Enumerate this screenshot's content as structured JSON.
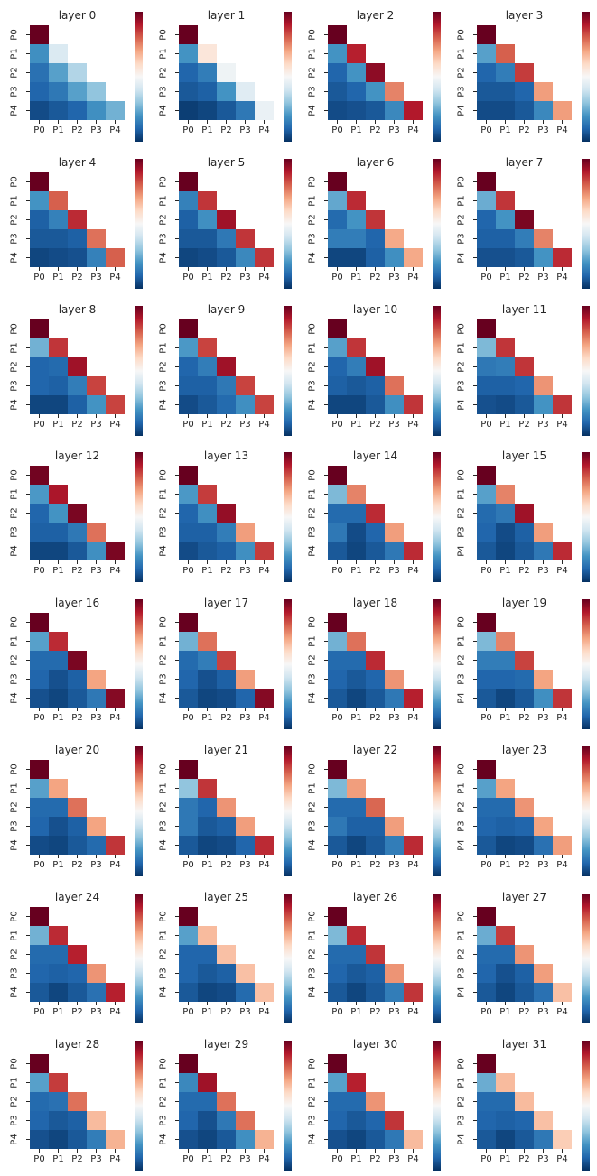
{
  "figure_name": "layerwise-similarity-heatmaps",
  "chart_data": {
    "type": "heatmap",
    "layout": {
      "grid_rows": 8,
      "grid_cols": 4,
      "n_panels": 32
    },
    "x_ticklabels": [
      "P0",
      "P1",
      "P2",
      "P3",
      "P4"
    ],
    "y_ticklabels": [
      "P0",
      "P1",
      "P2",
      "P3",
      "P4"
    ],
    "triangular": "lower",
    "vmin": -1,
    "vmax": 1,
    "colorbar": {
      "shown": true,
      "tick_labels": []
    },
    "colormap": {
      "name": "RdBu_r",
      "anchors_low_to_high": [
        "#053061",
        "#2166ac",
        "#4393c3",
        "#92c5de",
        "#d1e5f0",
        "#f7f7f7",
        "#fddbc7",
        "#f4a582",
        "#d6604d",
        "#b2182b",
        "#67001f"
      ]
    },
    "panels": [
      {
        "title": "layer 0",
        "matrix": [
          [
            1.0
          ],
          [
            -0.62,
            -0.15
          ],
          [
            -0.75,
            -0.55,
            -0.3
          ],
          [
            -0.8,
            -0.72,
            -0.55,
            -0.4
          ],
          [
            -0.9,
            -0.85,
            -0.8,
            -0.62,
            -0.48
          ]
        ]
      },
      {
        "title": "layer 1",
        "matrix": [
          [
            1.0
          ],
          [
            -0.6,
            0.12
          ],
          [
            -0.8,
            -0.7,
            -0.05
          ],
          [
            -0.85,
            -0.82,
            -0.6,
            -0.12
          ],
          [
            -0.95,
            -0.92,
            -0.85,
            -0.72,
            -0.07
          ]
        ]
      },
      {
        "title": "layer 2",
        "matrix": [
          [
            1.0
          ],
          [
            -0.6,
            0.78
          ],
          [
            -0.8,
            -0.6,
            0.9
          ],
          [
            -0.85,
            -0.8,
            -0.6,
            0.5
          ],
          [
            -0.9,
            -0.88,
            -0.85,
            -0.65,
            0.8
          ]
        ]
      },
      {
        "title": "layer 3",
        "matrix": [
          [
            1.0
          ],
          [
            -0.55,
            0.6
          ],
          [
            -0.8,
            -0.7,
            0.7
          ],
          [
            -0.85,
            -0.85,
            -0.8,
            0.42
          ],
          [
            -0.9,
            -0.9,
            -0.85,
            -0.65,
            0.42
          ]
        ]
      },
      {
        "title": "layer 4",
        "matrix": [
          [
            1.0
          ],
          [
            -0.6,
            0.6
          ],
          [
            -0.82,
            -0.68,
            0.75
          ],
          [
            -0.85,
            -0.85,
            -0.82,
            0.55
          ],
          [
            -0.92,
            -0.9,
            -0.88,
            -0.68,
            0.6
          ]
        ]
      },
      {
        "title": "layer 5",
        "matrix": [
          [
            1.0
          ],
          [
            -0.68,
            0.72
          ],
          [
            -0.82,
            -0.62,
            0.85
          ],
          [
            -0.85,
            -0.85,
            -0.72,
            0.72
          ],
          [
            -0.92,
            -0.9,
            -0.85,
            -0.65,
            0.72
          ]
        ]
      },
      {
        "title": "layer 6",
        "matrix": [
          [
            1.0
          ],
          [
            -0.52,
            0.75
          ],
          [
            -0.78,
            -0.6,
            0.72
          ],
          [
            -0.7,
            -0.7,
            -0.8,
            0.38
          ],
          [
            -0.92,
            -0.92,
            -0.82,
            -0.62,
            0.38
          ]
        ]
      },
      {
        "title": "layer 7",
        "matrix": [
          [
            1.0
          ],
          [
            -0.5,
            0.72
          ],
          [
            -0.8,
            -0.6,
            0.95
          ],
          [
            -0.82,
            -0.82,
            -0.7,
            0.5
          ],
          [
            -0.88,
            -0.88,
            -0.85,
            -0.6,
            0.75
          ]
        ]
      },
      {
        "title": "layer 8",
        "matrix": [
          [
            1.0
          ],
          [
            -0.48,
            0.72
          ],
          [
            -0.8,
            -0.78,
            0.85
          ],
          [
            -0.8,
            -0.82,
            -0.7,
            0.68
          ],
          [
            -0.92,
            -0.92,
            -0.82,
            -0.6,
            0.68
          ]
        ]
      },
      {
        "title": "layer 9",
        "matrix": [
          [
            1.0
          ],
          [
            -0.58,
            0.68
          ],
          [
            -0.8,
            -0.7,
            0.85
          ],
          [
            -0.82,
            -0.82,
            -0.72,
            0.68
          ],
          [
            -0.9,
            -0.85,
            -0.78,
            -0.62,
            0.68
          ]
        ]
      },
      {
        "title": "layer 10",
        "matrix": [
          [
            1.0
          ],
          [
            -0.55,
            0.72
          ],
          [
            -0.8,
            -0.7,
            0.85
          ],
          [
            -0.82,
            -0.85,
            -0.82,
            0.55
          ],
          [
            -0.92,
            -0.92,
            -0.85,
            -0.62,
            0.72
          ]
        ]
      },
      {
        "title": "layer 11",
        "matrix": [
          [
            1.0
          ],
          [
            -0.45,
            0.72
          ],
          [
            -0.72,
            -0.7,
            0.72
          ],
          [
            -0.82,
            -0.82,
            -0.8,
            0.45
          ],
          [
            -0.88,
            -0.9,
            -0.85,
            -0.6,
            0.72
          ]
        ]
      },
      {
        "title": "layer 12",
        "matrix": [
          [
            0.97
          ],
          [
            -0.58,
            0.82
          ],
          [
            -0.8,
            -0.6,
            0.95
          ],
          [
            -0.82,
            -0.82,
            -0.72,
            0.55
          ],
          [
            -0.92,
            -0.92,
            -0.85,
            -0.62,
            0.95
          ]
        ]
      },
      {
        "title": "layer 13",
        "matrix": [
          [
            1.0
          ],
          [
            -0.58,
            0.7
          ],
          [
            -0.8,
            -0.62,
            0.88
          ],
          [
            -0.82,
            -0.82,
            -0.7,
            0.42
          ],
          [
            -0.9,
            -0.85,
            -0.82,
            -0.62,
            0.7
          ]
        ]
      },
      {
        "title": "layer 14",
        "matrix": [
          [
            1.0
          ],
          [
            -0.45,
            0.5
          ],
          [
            -0.78,
            -0.78,
            0.75
          ],
          [
            -0.72,
            -0.9,
            -0.8,
            0.42
          ],
          [
            -0.85,
            -0.92,
            -0.85,
            -0.72,
            0.75
          ]
        ]
      },
      {
        "title": "layer 15",
        "matrix": [
          [
            1.0
          ],
          [
            -0.55,
            0.5
          ],
          [
            -0.78,
            -0.72,
            0.85
          ],
          [
            -0.8,
            -0.9,
            -0.82,
            0.42
          ],
          [
            -0.85,
            -0.92,
            -0.85,
            -0.72,
            0.75
          ]
        ]
      },
      {
        "title": "layer 16",
        "matrix": [
          [
            1.0
          ],
          [
            -0.55,
            0.75
          ],
          [
            -0.78,
            -0.78,
            0.95
          ],
          [
            -0.8,
            -0.88,
            -0.82,
            0.4
          ],
          [
            -0.88,
            -0.92,
            -0.85,
            -0.72,
            0.92
          ]
        ]
      },
      {
        "title": "layer 17",
        "matrix": [
          [
            1.0
          ],
          [
            -0.48,
            0.55
          ],
          [
            -0.78,
            -0.7,
            0.68
          ],
          [
            -0.8,
            -0.88,
            -0.82,
            0.42
          ],
          [
            -0.85,
            -0.92,
            -0.9,
            -0.8,
            0.92
          ]
        ]
      },
      {
        "title": "layer 18",
        "matrix": [
          [
            1.0
          ],
          [
            -0.48,
            0.55
          ],
          [
            -0.78,
            -0.78,
            0.75
          ],
          [
            -0.8,
            -0.85,
            -0.8,
            0.45
          ],
          [
            -0.85,
            -0.92,
            -0.85,
            -0.72,
            0.78
          ]
        ]
      },
      {
        "title": "layer 19",
        "matrix": [
          [
            1.0
          ],
          [
            -0.45,
            0.5
          ],
          [
            -0.7,
            -0.7,
            0.68
          ],
          [
            -0.8,
            -0.8,
            -0.78,
            0.4
          ],
          [
            -0.85,
            -0.92,
            -0.85,
            -0.62,
            0.72
          ]
        ]
      },
      {
        "title": "layer 20",
        "matrix": [
          [
            1.0
          ],
          [
            -0.55,
            0.4
          ],
          [
            -0.78,
            -0.78,
            0.55
          ],
          [
            -0.8,
            -0.88,
            -0.82,
            0.4
          ],
          [
            -0.9,
            -0.92,
            -0.85,
            -0.78,
            0.72
          ]
        ]
      },
      {
        "title": "layer 21",
        "matrix": [
          [
            1.0
          ],
          [
            -0.4,
            0.72
          ],
          [
            -0.72,
            -0.8,
            0.45
          ],
          [
            -0.72,
            -0.85,
            -0.82,
            0.42
          ],
          [
            -0.85,
            -0.92,
            -0.9,
            -0.8,
            0.75
          ]
        ]
      },
      {
        "title": "layer 22",
        "matrix": [
          [
            1.0
          ],
          [
            -0.45,
            0.42
          ],
          [
            -0.78,
            -0.78,
            0.58
          ],
          [
            -0.72,
            -0.82,
            -0.82,
            0.42
          ],
          [
            -0.85,
            -0.92,
            -0.85,
            -0.7,
            0.75
          ]
        ]
      },
      {
        "title": "layer 23",
        "matrix": [
          [
            1.0
          ],
          [
            -0.55,
            0.4
          ],
          [
            -0.78,
            -0.78,
            0.45
          ],
          [
            -0.8,
            -0.82,
            -0.8,
            0.4
          ],
          [
            -0.85,
            -0.92,
            -0.9,
            -0.75,
            0.42
          ]
        ]
      },
      {
        "title": "layer 24",
        "matrix": [
          [
            1.0
          ],
          [
            -0.48,
            0.75
          ],
          [
            -0.78,
            -0.78,
            0.78
          ],
          [
            -0.8,
            -0.82,
            -0.8,
            0.45
          ],
          [
            -0.85,
            -0.92,
            -0.85,
            -0.75,
            0.78
          ]
        ]
      },
      {
        "title": "layer 25",
        "matrix": [
          [
            1.0
          ],
          [
            -0.55,
            0.32
          ],
          [
            -0.8,
            -0.8,
            0.3
          ],
          [
            -0.8,
            -0.85,
            -0.82,
            0.3
          ],
          [
            -0.85,
            -0.92,
            -0.9,
            -0.78,
            0.3
          ]
        ]
      },
      {
        "title": "layer 26",
        "matrix": [
          [
            1.0
          ],
          [
            -0.45,
            0.75
          ],
          [
            -0.78,
            -0.78,
            0.72
          ],
          [
            -0.8,
            -0.85,
            -0.82,
            0.45
          ],
          [
            -0.85,
            -0.92,
            -0.85,
            -0.7,
            0.72
          ]
        ]
      },
      {
        "title": "layer 27",
        "matrix": [
          [
            1.0
          ],
          [
            -0.5,
            0.7
          ],
          [
            -0.78,
            -0.78,
            0.45
          ],
          [
            -0.8,
            -0.88,
            -0.82,
            0.42
          ],
          [
            -0.85,
            -0.92,
            -0.85,
            -0.75,
            0.3
          ]
        ]
      },
      {
        "title": "layer 28",
        "matrix": [
          [
            1.0
          ],
          [
            -0.55,
            0.7
          ],
          [
            -0.78,
            -0.75,
            0.55
          ],
          [
            -0.8,
            -0.85,
            -0.82,
            0.32
          ],
          [
            -0.88,
            -0.92,
            -0.85,
            -0.7,
            0.35
          ]
        ]
      },
      {
        "title": "layer 29",
        "matrix": [
          [
            1.0
          ],
          [
            -0.65,
            0.85
          ],
          [
            -0.78,
            -0.78,
            0.55
          ],
          [
            -0.8,
            -0.88,
            -0.72,
            0.55
          ],
          [
            -0.88,
            -0.92,
            -0.85,
            -0.62,
            0.35
          ]
        ]
      },
      {
        "title": "layer 30",
        "matrix": [
          [
            1.0
          ],
          [
            -0.55,
            0.78
          ],
          [
            -0.78,
            -0.78,
            0.45
          ],
          [
            -0.8,
            -0.85,
            -0.8,
            0.72
          ],
          [
            -0.88,
            -0.92,
            -0.85,
            -0.72,
            0.32
          ]
        ]
      },
      {
        "title": "layer 31",
        "matrix": [
          [
            1.0
          ],
          [
            -0.5,
            0.32
          ],
          [
            -0.78,
            -0.78,
            0.32
          ],
          [
            -0.8,
            -0.82,
            -0.8,
            0.3
          ],
          [
            -0.85,
            -0.92,
            -0.85,
            -0.72,
            0.25
          ]
        ]
      }
    ]
  }
}
